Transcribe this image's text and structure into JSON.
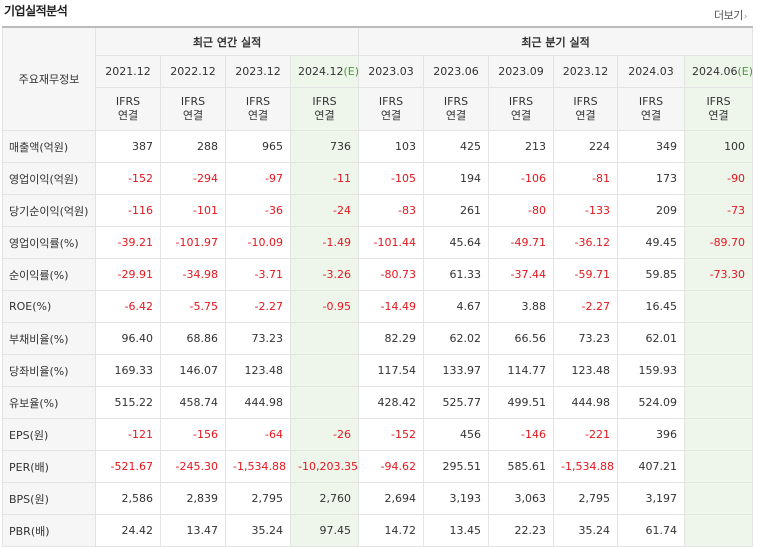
{
  "title": "기업실적분석",
  "more_label": "더보기",
  "more_chevron": "›",
  "row_header": "주요재무정보",
  "groups": {
    "annual": "최근 연간 실적",
    "quarter": "최근 분기 실적"
  },
  "periods": [
    {
      "label": "2021.12",
      "est": ""
    },
    {
      "label": "2022.12",
      "est": ""
    },
    {
      "label": "2023.12",
      "est": ""
    },
    {
      "label": "2024.12",
      "est": "(E)"
    },
    {
      "label": "2023.03",
      "est": ""
    },
    {
      "label": "2023.06",
      "est": ""
    },
    {
      "label": "2023.09",
      "est": ""
    },
    {
      "label": "2023.12",
      "est": ""
    },
    {
      "label": "2024.03",
      "est": ""
    },
    {
      "label": "2024.06",
      "est": "(E)"
    }
  ],
  "ifrs": {
    "top": "IFRS",
    "bottom": "연결"
  },
  "rows": [
    {
      "label": "매출액(억원)",
      "values": [
        "387",
        "288",
        "965",
        "736",
        "103",
        "425",
        "213",
        "224",
        "349",
        "100"
      ]
    },
    {
      "label": "영업이익(억원)",
      "values": [
        "-152",
        "-294",
        "-97",
        "-11",
        "-105",
        "194",
        "-106",
        "-81",
        "173",
        "-90"
      ]
    },
    {
      "label": "당기순이익(억원)",
      "values": [
        "-116",
        "-101",
        "-36",
        "-24",
        "-83",
        "261",
        "-80",
        "-133",
        "209",
        "-73"
      ]
    },
    {
      "label": "영업이익률(%)",
      "values": [
        "-39.21",
        "-101.97",
        "-10.09",
        "-1.49",
        "-101.44",
        "45.64",
        "-49.71",
        "-36.12",
        "49.45",
        "-89.70"
      ]
    },
    {
      "label": "순이익률(%)",
      "values": [
        "-29.91",
        "-34.98",
        "-3.71",
        "-3.26",
        "-80.73",
        "61.33",
        "-37.44",
        "-59.71",
        "59.85",
        "-73.30"
      ]
    },
    {
      "label": "ROE(%)",
      "values": [
        "-6.42",
        "-5.75",
        "-2.27",
        "-0.95",
        "-14.49",
        "4.67",
        "3.88",
        "-2.27",
        "16.45",
        ""
      ]
    },
    {
      "label": "부채비율(%)",
      "values": [
        "96.40",
        "68.86",
        "73.23",
        "",
        "82.29",
        "62.02",
        "66.56",
        "73.23",
        "62.01",
        ""
      ]
    },
    {
      "label": "당좌비율(%)",
      "values": [
        "169.33",
        "146.07",
        "123.48",
        "",
        "117.54",
        "133.97",
        "114.77",
        "123.48",
        "159.93",
        ""
      ]
    },
    {
      "label": "유보율(%)",
      "values": [
        "515.22",
        "458.74",
        "444.98",
        "",
        "428.42",
        "525.77",
        "499.51",
        "444.98",
        "524.09",
        ""
      ]
    },
    {
      "label": "EPS(원)",
      "values": [
        "-121",
        "-156",
        "-64",
        "-26",
        "-152",
        "456",
        "-146",
        "-221",
        "396",
        ""
      ]
    },
    {
      "label": "PER(배)",
      "values": [
        "-521.67",
        "-245.30",
        "-1,534.88",
        "-10,203.35",
        "-94.62",
        "295.51",
        "585.61",
        "-1,534.88",
        "407.21",
        ""
      ]
    },
    {
      "label": "BPS(원)",
      "values": [
        "2,586",
        "2,839",
        "2,795",
        "2,760",
        "2,694",
        "3,193",
        "3,063",
        "2,795",
        "3,197",
        ""
      ]
    },
    {
      "label": "PBR(배)",
      "values": [
        "24.42",
        "13.47",
        "35.24",
        "97.45",
        "14.72",
        "13.45",
        "22.23",
        "35.24",
        "61.74",
        ""
      ]
    }
  ],
  "colors": {
    "negative": "#e5161d",
    "ifrs": "#f0662c",
    "estimate_bg": "#eef6ec",
    "estimate_mark": "#4a9a3b"
  }
}
